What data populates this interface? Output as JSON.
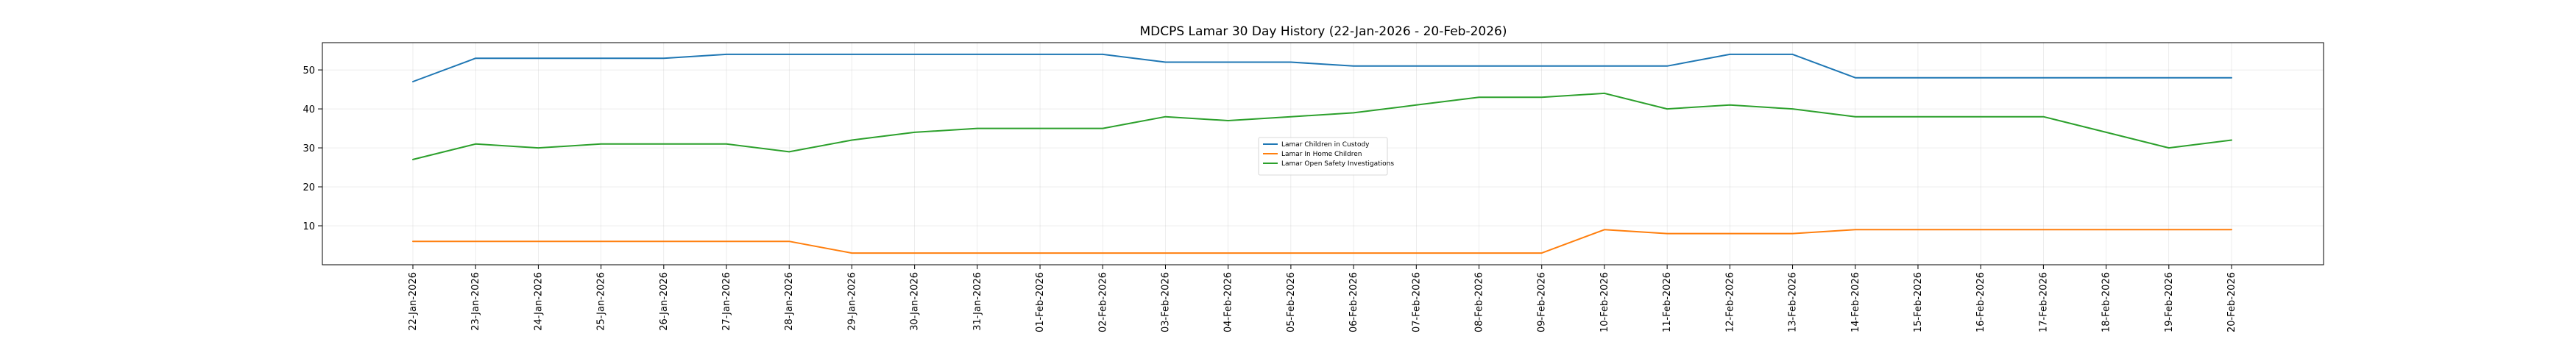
{
  "chart_data": {
    "type": "line",
    "title": "MDCPS Lamar 30 Day History (22-Jan-2026 - 20-Feb-2026)",
    "xlabel": "",
    "ylabel": "",
    "ylim": [
      0,
      57
    ],
    "yticks": [
      10,
      20,
      30,
      40,
      50
    ],
    "grid": true,
    "legend_position": "center",
    "categories": [
      "22-Jan-2026",
      "23-Jan-2026",
      "24-Jan-2026",
      "25-Jan-2026",
      "26-Jan-2026",
      "27-Jan-2026",
      "28-Jan-2026",
      "29-Jan-2026",
      "30-Jan-2026",
      "31-Jan-2026",
      "01-Feb-2026",
      "02-Feb-2026",
      "03-Feb-2026",
      "04-Feb-2026",
      "05-Feb-2026",
      "06-Feb-2026",
      "07-Feb-2026",
      "08-Feb-2026",
      "09-Feb-2026",
      "10-Feb-2026",
      "11-Feb-2026",
      "12-Feb-2026",
      "13-Feb-2026",
      "14-Feb-2026",
      "15-Feb-2026",
      "16-Feb-2026",
      "17-Feb-2026",
      "18-Feb-2026",
      "19-Feb-2026",
      "20-Feb-2026"
    ],
    "series": [
      {
        "name": "Lamar Children in Custody",
        "color": "#1f77b4",
        "values": [
          47,
          53,
          53,
          53,
          53,
          54,
          54,
          54,
          54,
          54,
          54,
          54,
          52,
          52,
          52,
          51,
          51,
          51,
          51,
          51,
          51,
          54,
          54,
          48,
          48,
          48,
          48,
          48,
          48,
          48
        ]
      },
      {
        "name": "Lamar In Home Children",
        "color": "#ff7f0e",
        "values": [
          6,
          6,
          6,
          6,
          6,
          6,
          6,
          3,
          3,
          3,
          3,
          3,
          3,
          3,
          3,
          3,
          3,
          3,
          3,
          9,
          8,
          8,
          8,
          9,
          9,
          9,
          9,
          9,
          9,
          9
        ]
      },
      {
        "name": "Lamar Open Safety Investigations",
        "color": "#2ca02c",
        "values": [
          27,
          31,
          30,
          31,
          31,
          31,
          29,
          32,
          34,
          35,
          35,
          35,
          38,
          37,
          38,
          39,
          41,
          43,
          43,
          44,
          40,
          41,
          40,
          38,
          38,
          38,
          38,
          34,
          30,
          32
        ]
      }
    ]
  }
}
